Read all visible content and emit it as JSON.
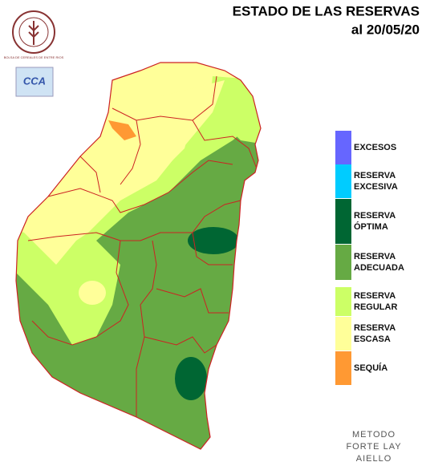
{
  "header": {
    "title": "ESTADO DE LAS RESERVAS",
    "date": "al 20/05/20"
  },
  "logo": {
    "text": "BOLSA DE CEREALES DE ENTRE RIOS",
    "badge": "CCA"
  },
  "legend": {
    "items": [
      {
        "lines": [
          "EXCESOS"
        ],
        "color": "#6666ff"
      },
      {
        "lines": [
          "RESERVA",
          "EXCESIVA"
        ],
        "color": "#00ccff"
      },
      {
        "lines": [
          "RESERVA",
          "ÓPTIMA"
        ],
        "color": "#006633"
      },
      {
        "lines": [
          "RESERVA",
          "ADECUADA"
        ],
        "color": "#66aa44"
      },
      {
        "lines": [
          "RESERVA",
          "REGULAR"
        ],
        "color": "#ccff66"
      },
      {
        "lines": [
          "RESERVA",
          "ESCASA"
        ],
        "color": "#ffff99"
      },
      {
        "lines": [
          "SEQUÍA"
        ],
        "color": "#ff9933"
      }
    ]
  },
  "footer": {
    "lines": [
      "METODO",
      "FORTE LAY",
      "AIELLO"
    ]
  }
}
